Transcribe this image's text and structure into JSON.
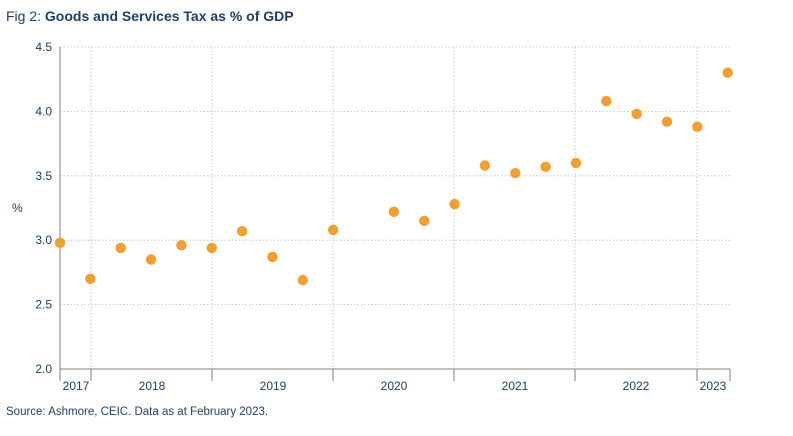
{
  "figure": {
    "prefix": "Fig 2: ",
    "title": "Goods and Services Tax as % of GDP",
    "source": "Source: Ashmore, CEIC. Data as at February 2023."
  },
  "colors": {
    "marker": "#F0A030",
    "title_text": "#1C3F6E",
    "axis_text": "#1C3F6E",
    "grid": "#BFBFBF",
    "axis_line": "#808080"
  },
  "chart_data": {
    "type": "scatter",
    "title": "Goods and Services Tax as % of GDP",
    "xlabel": "",
    "ylabel": "%",
    "ylim": [
      2.0,
      4.5
    ],
    "yticks": [
      "2.0",
      "2.5",
      "3.0",
      "3.5",
      "4.0",
      "4.5"
    ],
    "year_labels": [
      "2017",
      "2018",
      "2019",
      "2020",
      "2021",
      "2022",
      "2023"
    ],
    "grid": true,
    "legend": "none",
    "x": [
      "2017-Q2",
      "2017-Q3",
      "2017-Q4",
      "2018-Q1",
      "2018-Q2",
      "2018-Q3",
      "2018-Q4",
      "2019-Q1",
      "2019-Q2",
      "2019-Q3",
      "2019-Q4",
      "2020-Q1",
      "2020-Q2",
      "2020-Q3",
      "2020-Q4",
      "2021-Q1",
      "2021-Q2",
      "2021-Q3",
      "2021-Q4",
      "2022-Q1",
      "2022-Q2",
      "2022-Q3",
      "2022-Q4",
      "2023-Q1"
    ],
    "values": [
      2.98,
      2.7,
      2.94,
      2.85,
      2.96,
      2.94,
      3.07,
      2.87,
      2.69,
      3.08,
      null,
      3.22,
      3.15,
      3.28,
      3.58,
      3.52,
      3.57,
      3.6,
      4.08,
      3.98,
      3.92,
      3.88,
      4.3,
      null
    ]
  }
}
